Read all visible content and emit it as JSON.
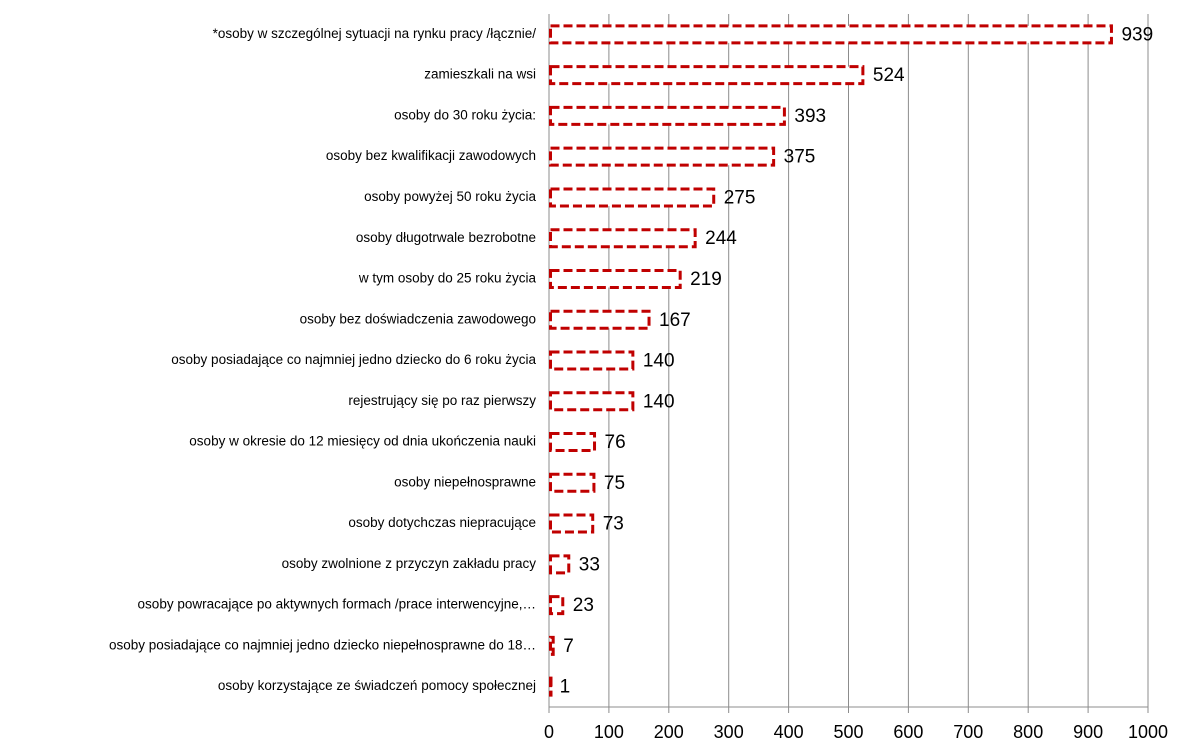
{
  "chart_data": {
    "type": "bar",
    "orientation": "horizontal",
    "categories": [
      "*osoby w szczególnej sytuacji na rynku pracy /łącznie/",
      "zamieszkali na wsi",
      "osoby do 30 roku życia:",
      "osoby bez kwalifikacji zawodowych",
      "osoby powyżej 50 roku życia",
      "osoby długotrwale bezrobotne",
      "w tym osoby do 25 roku życia",
      "osoby bez doświadczenia zawodowego",
      "osoby posiadające co najmniej jedno dziecko do 6 roku życia",
      "rejestrujący się po raz pierwszy",
      "osoby w okresie do 12 miesięcy od dnia ukończenia nauki",
      "osoby niepełnosprawne",
      "osoby dotychczas niepracujące",
      "osoby zwolnione z przyczyn zakładu pracy",
      "osoby powracające po aktywnych formach /prace interwencyjne,…",
      "osoby posiadające co najmniej jedno dziecko niepełnosprawne do 18…",
      "osoby korzystające ze świadczeń pomocy społecznej"
    ],
    "values": [
      939,
      524,
      393,
      375,
      275,
      244,
      219,
      167,
      140,
      140,
      76,
      75,
      73,
      33,
      23,
      7,
      1
    ],
    "color": "#c00000",
    "xlim": [
      0,
      1000
    ],
    "xticks": [
      0,
      100,
      200,
      300,
      400,
      500,
      600,
      700,
      800,
      900,
      1000
    ],
    "grid": true
  }
}
